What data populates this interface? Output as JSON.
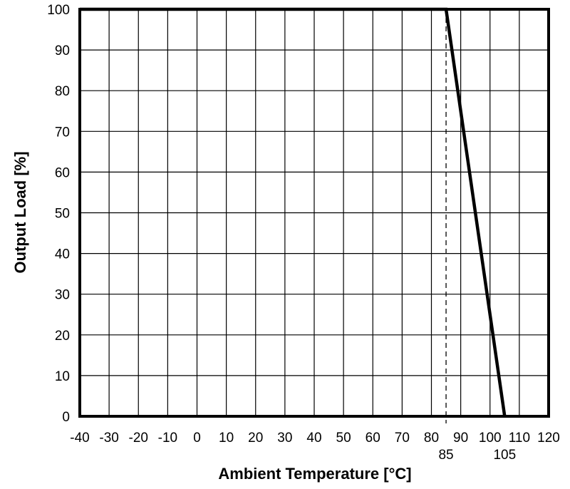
{
  "chart_data": {
    "type": "line",
    "title": "",
    "xlabel": "Ambient Temperature [°C]",
    "ylabel": "Output Load [%]",
    "xlim": [
      -40,
      120
    ],
    "ylim": [
      0,
      100
    ],
    "x_ticks": [
      -40,
      -30,
      -20,
      -10,
      0,
      10,
      20,
      30,
      40,
      50,
      60,
      70,
      80,
      90,
      100,
      110,
      120
    ],
    "y_ticks": [
      0,
      10,
      20,
      30,
      40,
      50,
      60,
      70,
      80,
      90,
      100
    ],
    "extra_x_ticks": [
      85,
      105
    ],
    "grid": true,
    "series": [
      {
        "x": [
          -40,
          85,
          105
        ],
        "y": [
          100,
          100,
          0
        ]
      }
    ],
    "reference_lines": [
      {
        "orientation": "vertical",
        "x": 85,
        "style": "dashed"
      }
    ],
    "colors": {
      "line": "#000000",
      "grid": "#000000",
      "background": "#ffffff"
    }
  }
}
